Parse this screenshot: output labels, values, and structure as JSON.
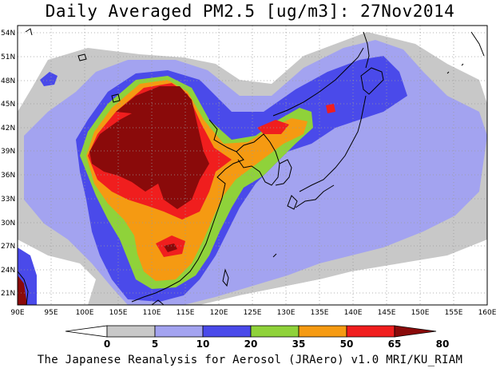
{
  "title": "Daily Averaged PM2.5 [ug/m3]: 27Nov2014",
  "credit": "The Japanese Reanalysis for Aerosol (JRAero) v1.0 MRI/KU_RIAM",
  "lat_labels": [
    "54N",
    "51N",
    "48N",
    "45N",
    "42N",
    "39N",
    "36N",
    "33N",
    "30N",
    "27N",
    "24N",
    "21N"
  ],
  "lon_labels": [
    "90E",
    "95E",
    "100E",
    "105E",
    "110E",
    "115E",
    "120E",
    "125E",
    "130E",
    "135E",
    "140E",
    "145E",
    "150E",
    "155E",
    "160E"
  ],
  "colorbar": {
    "levels": [
      "0",
      "5",
      "10",
      "20",
      "35",
      "50",
      "65",
      "80"
    ],
    "colors": [
      "#ffffff",
      "#c8c8c8",
      "#a3a3f0",
      "#4a4aea",
      "#8fd23a",
      "#f59a12",
      "#f01e1e",
      "#8a0a0a"
    ]
  },
  "palette": {
    "grey": "#c8c8c8",
    "light_blue": "#a3a3f0",
    "blue": "#4a4aea",
    "green": "#8fd23a",
    "orange": "#f59a12",
    "red": "#f01e1e",
    "dark_red": "#8a0a0a"
  }
}
